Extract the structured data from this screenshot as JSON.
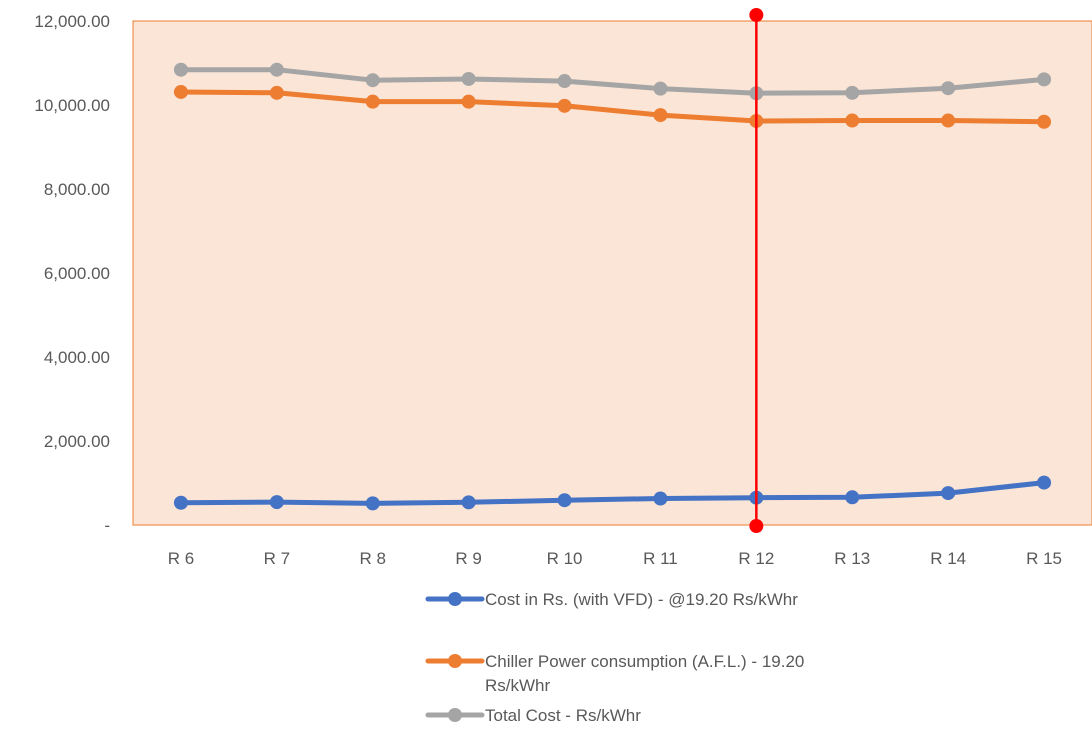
{
  "chart_data": {
    "type": "line",
    "categories": [
      "R 6",
      "R 7",
      "R 8",
      "R 9",
      "R 10",
      "R 11",
      "R 12",
      "R 13",
      "R 14",
      "R 15"
    ],
    "ylim": [
      0,
      12000
    ],
    "yticks": [
      0,
      2000,
      4000,
      6000,
      8000,
      10000,
      12000
    ],
    "ytick_labels": [
      "-",
      "2,000.00",
      "4,000.00",
      "6,000.00",
      "8,000.00",
      "10,000.00",
      "12,000.00"
    ],
    "grid": false,
    "plot_background": "#fbe5d6",
    "legend_position": "bottom",
    "series": [
      {
        "name": "Cost in Rs. (with VFD) - @19.20 Rs/kWhr",
        "legend_lines": [
          "Cost in Rs. (with VFD) - @19.20 Rs/kWhr"
        ],
        "color": "#4472c4",
        "values": [
          530,
          545,
          515,
          540,
          590,
          630,
          650,
          660,
          760,
          1010
        ]
      },
      {
        "name": "Chiller Power consumption (A.F.L.) - 19.20 Rs/kWhr",
        "legend_lines": [
          "Chiller Power consumption (A.F.L.) - 19.20",
          "Rs/kWhr"
        ],
        "color": "#ed7d31",
        "values": [
          10310,
          10290,
          10080,
          10080,
          9980,
          9760,
          9620,
          9630,
          9630,
          9600
        ]
      },
      {
        "name": "Total Cost - Rs/kWhr",
        "legend_lines": [
          "Total Cost - Rs/kWhr"
        ],
        "color": "#a5a5a5",
        "values": [
          10840,
          10840,
          10590,
          10620,
          10570,
          10390,
          10280,
          10290,
          10400,
          10610
        ]
      }
    ],
    "marker_line": {
      "category": "R 12",
      "color": "#ff0000"
    }
  }
}
